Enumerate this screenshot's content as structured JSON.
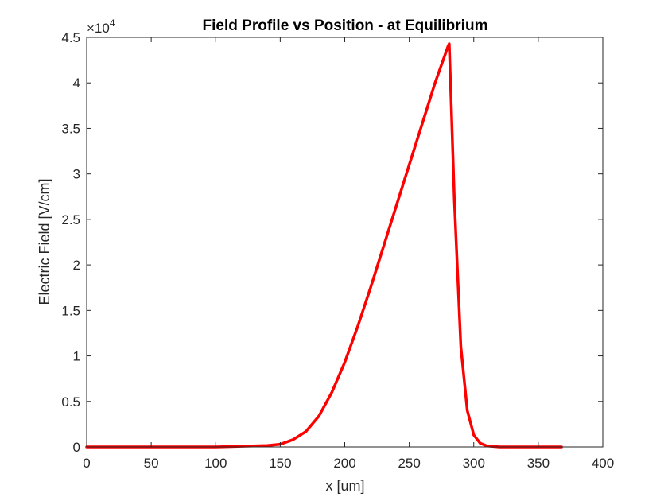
{
  "chart_data": {
    "type": "line",
    "title": "Field Profile vs Position - at Equilibrium",
    "xlabel": "x [um]",
    "ylabel": "Electric Field [V/cm]",
    "xlim": [
      0,
      400
    ],
    "ylim": [
      0,
      45000
    ],
    "x_ticks": [
      0,
      50,
      100,
      150,
      200,
      250,
      300,
      350,
      400
    ],
    "x_tick_labels": [
      "0",
      "50",
      "100",
      "150",
      "200",
      "250",
      "300",
      "350",
      "400"
    ],
    "y_ticks": [
      0,
      5000,
      10000,
      15000,
      20000,
      25000,
      30000,
      35000,
      40000,
      45000
    ],
    "y_tick_labels": [
      "0",
      "0.5",
      "1",
      "1.5",
      "2",
      "2.5",
      "3",
      "3.5",
      "4",
      "4.5"
    ],
    "y_exponent_base": "×10",
    "y_exponent_power": "4",
    "grid": false,
    "line_color": "#ff0000",
    "series": [
      {
        "x": [
          0,
          100,
          140,
          150,
          160,
          170,
          180,
          190,
          200,
          210,
          220,
          230,
          240,
          250,
          260,
          270,
          280,
          281,
          285,
          290,
          295,
          300,
          305,
          310,
          320,
          340,
          368
        ],
        "y": [
          0,
          0,
          150,
          300,
          800,
          1700,
          3400,
          6000,
          9300,
          13200,
          17500,
          22000,
          26500,
          31000,
          35500,
          40000,
          44000,
          44300,
          27000,
          11000,
          4000,
          1300,
          400,
          120,
          0,
          0,
          0
        ]
      }
    ]
  }
}
